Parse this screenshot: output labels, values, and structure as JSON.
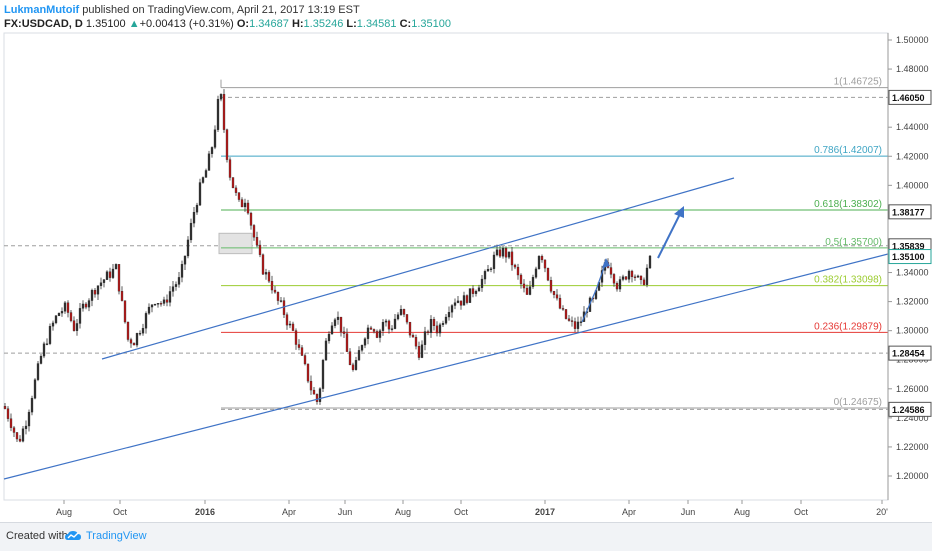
{
  "header": {
    "author": "LukmanMutoif",
    "published_text": "published on TradingView.com, April 21, 2017 13:19 EST"
  },
  "ohlc": {
    "symbol": "FX:USDCAD, D",
    "last": "1.35100",
    "change_arrow": "▲",
    "change": "+0.00413 (+0.31%)",
    "o_label": "O:",
    "o": "1.34687",
    "h_label": "H:",
    "h": "1.35246",
    "l_label": "L:",
    "l": "1.34581",
    "c_label": "C:",
    "c": "1.35100",
    "up_color": "#26a69a"
  },
  "footer": {
    "created_with": "Created with",
    "brand": "TradingView"
  },
  "chart_data": {
    "type": "candlestick",
    "symbol": "FX:USDCAD",
    "timeframe": "D",
    "ylim": [
      1.19,
      1.5
    ],
    "y_ticks": [
      "1.50000",
      "1.48000",
      "1.46000",
      "1.44000",
      "1.42000",
      "1.40000",
      "1.38000",
      "1.36000",
      "1.34000",
      "1.32000",
      "1.30000",
      "1.28000",
      "1.26000",
      "1.24000",
      "1.22000",
      "1.20000"
    ],
    "x_ticks": [
      "Aug",
      "Oct",
      "2016",
      "Apr",
      "Jun",
      "Aug",
      "Oct",
      "2017",
      "Apr",
      "Jun",
      "Aug",
      "Oct",
      "20'"
    ],
    "price_labels": [
      {
        "value": "1.46050",
        "price": 1.4605,
        "color": "#9e9e9e"
      },
      {
        "value": "1.38177",
        "price": 1.38177,
        "color": "#9e9e9e"
      },
      {
        "value": "1.35839",
        "price": 1.35839,
        "color": "#9e9e9e"
      },
      {
        "value": "1.35100",
        "price": 1.351,
        "color": "#26a69a"
      },
      {
        "value": "1.28454",
        "price": 1.28454,
        "color": "#9e9e9e"
      },
      {
        "value": "1.24586",
        "price": 1.24586,
        "color": "#9e9e9e"
      }
    ],
    "fibonacci": [
      {
        "label": "1(1.46725)",
        "level": 1,
        "price": 1.46725,
        "color": "#9e9e9e"
      },
      {
        "label": "0.786(1.42007)",
        "level": 0.786,
        "price": 1.42007,
        "color": "#3fa5c4"
      },
      {
        "label": "0.618(1.38302)",
        "level": 0.618,
        "price": 1.38302,
        "color": "#4caf50"
      },
      {
        "label": "0.5(1.35700)",
        "level": 0.5,
        "price": 1.357,
        "color": "#66bb6a"
      },
      {
        "label": "0.382(1.33098)",
        "level": 0.382,
        "price": 1.33098,
        "color": "#9ccc30"
      },
      {
        "label": "0.236(1.29879)",
        "level": 0.236,
        "price": 1.29879,
        "color": "#e53935"
      },
      {
        "label": "0(1.24675)",
        "level": 0,
        "price": 1.24675,
        "color": "#9e9e9e"
      }
    ],
    "trend_channel_color": "#3f73c6",
    "up_candle_color": "#333333",
    "down_candle_color": "#b71c1c"
  }
}
